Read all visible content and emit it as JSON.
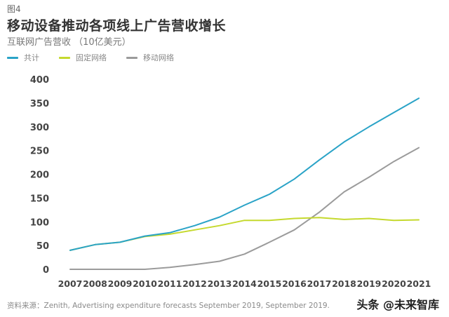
{
  "figure_label": "图4",
  "title": "移动设备推动各项线上广告营收增长",
  "subtitle": "互联网广告营收 （10亿美元）",
  "source": "资料来源：Zenith, Advertising expenditure forecasts September 2019, September 2019.",
  "watermark": "头条 @未来智库",
  "chart_data": {
    "type": "line",
    "x": [
      "2007",
      "2008",
      "2009",
      "2010",
      "2011",
      "2012",
      "2013",
      "2014",
      "2015",
      "2016",
      "2017",
      "2018",
      "2019",
      "2020",
      "2021"
    ],
    "ylim": [
      0,
      400
    ],
    "yticks": [
      0,
      50,
      100,
      150,
      200,
      250,
      300,
      350,
      400
    ],
    "grid": false,
    "legend_position": "top-left",
    "series": [
      {
        "name": "共计",
        "color": "#2aa3c7",
        "values": [
          40,
          52,
          57,
          70,
          77,
          92,
          110,
          135,
          158,
          190,
          230,
          268,
          300,
          330,
          360
        ]
      },
      {
        "name": "固定网络",
        "color": "#c5d92e",
        "values": [
          40,
          52,
          57,
          69,
          74,
          83,
          92,
          103,
          103,
          107,
          109,
          105,
          107,
          103,
          104
        ]
      },
      {
        "name": "移动网络",
        "color": "#9b9b9b",
        "values": [
          0,
          0,
          0,
          0,
          4,
          10,
          17,
          32,
          57,
          83,
          120,
          163,
          194,
          227,
          256
        ]
      }
    ]
  }
}
